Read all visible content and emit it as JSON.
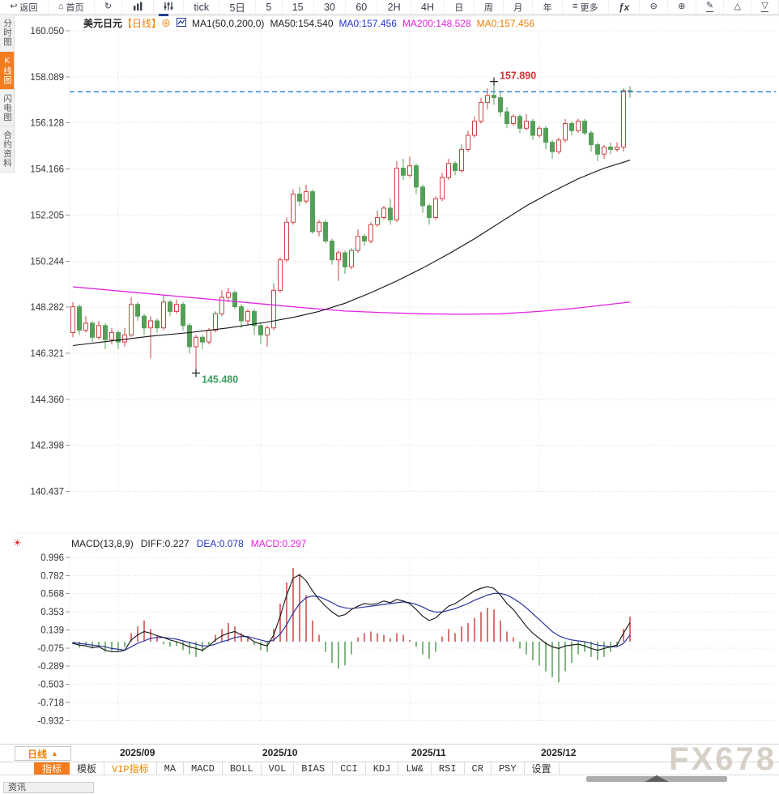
{
  "top_toolbar": {
    "items": [
      {
        "id": "back",
        "icon": "↩",
        "label": "返回"
      },
      {
        "id": "home",
        "icon": "⌂",
        "label": "首页"
      },
      {
        "id": "refresh",
        "icon": "↻",
        "label": ""
      },
      {
        "id": "chart-type",
        "icon": "svg-bars",
        "label": "",
        "active": true
      },
      {
        "id": "indicator-mixer",
        "icon": "svg-sliders",
        "label": ""
      },
      {
        "id": "period-tick",
        "icon": "",
        "label": "tick",
        "cls": "big"
      },
      {
        "id": "period-5d",
        "icon": "",
        "label": "5日",
        "cls": "big"
      },
      {
        "id": "period-5",
        "icon": "",
        "label": "5",
        "cls": "big"
      },
      {
        "id": "period-15",
        "icon": "",
        "label": "15",
        "cls": "big"
      },
      {
        "id": "period-30",
        "icon": "",
        "label": "30",
        "cls": "big"
      },
      {
        "id": "period-60",
        "icon": "",
        "label": "60",
        "cls": "big"
      },
      {
        "id": "period-2h",
        "icon": "",
        "label": "2H",
        "cls": "big"
      },
      {
        "id": "period-4h",
        "icon": "",
        "label": "4H",
        "cls": "big"
      },
      {
        "id": "period-day",
        "icon": "",
        "label": "日"
      },
      {
        "id": "period-week",
        "icon": "",
        "label": "周"
      },
      {
        "id": "period-month",
        "icon": "",
        "label": "月"
      },
      {
        "id": "period-year",
        "icon": "",
        "label": "年"
      },
      {
        "id": "more",
        "icon": "≡",
        "label": "更多"
      },
      {
        "id": "fx-functions",
        "icon": "",
        "label": "ƒx",
        "cls": "fx"
      },
      {
        "id": "zoom-out",
        "icon": "⊖",
        "label": ""
      },
      {
        "id": "zoom-in",
        "icon": "⊕",
        "label": ""
      },
      {
        "id": "draw-pencil",
        "icon": "✎",
        "label": "",
        "cls": "underlined"
      },
      {
        "id": "triangle-up",
        "icon": "△",
        "label": ""
      },
      {
        "id": "collapse-down",
        "icon": "▽",
        "label": "",
        "cls": "underlined"
      }
    ]
  },
  "sidebar": {
    "items": [
      {
        "id": "time-chart",
        "label": "分时图"
      },
      {
        "id": "kline-chart",
        "label": "K线图",
        "active": true
      },
      {
        "id": "lightning-chart",
        "label": "闪电图"
      },
      {
        "id": "contract-info",
        "label": "合约资料"
      }
    ]
  },
  "main_header": {
    "symbol": "美元日元",
    "period_tag": "【日线】",
    "add_icon": "⊕",
    "ma_settings": "MA1(50,0,200,0)",
    "ma50": "MA50:154.540",
    "ma0_blue": "MA0:157.456",
    "ma200": "MA200:148.528",
    "ma0_orange": "MA0:157.456"
  },
  "macd_header": {
    "settings_icon": "☀",
    "title": "MACD(13,8,9)",
    "diff": "DIFF:0.227",
    "dea": "DEA:0.078",
    "macd": "MACD:0.297"
  },
  "period_selector": {
    "label": "日线",
    "arrow": "▲"
  },
  "indicator_bar": {
    "items": [
      {
        "id": "indicators",
        "label": "指标",
        "active": true
      },
      {
        "id": "templates",
        "label": "模板"
      },
      {
        "id": "vip-indicators",
        "label": "VIP指标",
        "vip": true
      },
      {
        "id": "ma",
        "label": "MA"
      },
      {
        "id": "macd",
        "label": "MACD"
      },
      {
        "id": "boll",
        "label": "BOLL"
      },
      {
        "id": "vol",
        "label": "VOL"
      },
      {
        "id": "bias",
        "label": "BIAS"
      },
      {
        "id": "cci",
        "label": "CCI"
      },
      {
        "id": "kdj",
        "label": "KDJ"
      },
      {
        "id": "lw",
        "label": "LW&"
      },
      {
        "id": "rsi",
        "label": "RSI"
      },
      {
        "id": "cr",
        "label": "CR"
      },
      {
        "id": "psy",
        "label": "PSY"
      },
      {
        "id": "settings",
        "label": "设置"
      }
    ]
  },
  "bottom": {
    "partial_tab": "资讯"
  },
  "watermark": "FX678",
  "chart_data": {
    "type": "candlestick+macd",
    "symbol": "USD/JPY 美元日元",
    "period": "日线 (daily)",
    "price_axis": {
      "ticks": [
        "160.050",
        "158.089",
        "156.128",
        "154.166",
        "152.205",
        "150.244",
        "148.282",
        "146.321",
        "144.360",
        "142.398",
        "140.437"
      ]
    },
    "macd_axis": {
      "ticks": [
        "0.996",
        "0.782",
        "0.568",
        "0.353",
        "0.139",
        "-0.075",
        "-0.289",
        "-0.503",
        "-0.718",
        "-0.932"
      ]
    },
    "x_axis": {
      "months": [
        {
          "label": "2025/09",
          "index": 7
        },
        {
          "label": "2025/10",
          "index": 29
        },
        {
          "label": "2025/11",
          "index": 52
        },
        {
          "label": "2025/12",
          "index": 72
        }
      ]
    },
    "current_price": 157.456,
    "high_annotation": {
      "label": "157.890",
      "price": 157.89,
      "index": 65
    },
    "low_annotation": {
      "label": "145.480",
      "price": 145.48,
      "index": 19
    },
    "candles": [
      [
        147.2,
        148.5,
        147.0,
        148.3
      ],
      [
        148.3,
        148.4,
        147.1,
        147.3
      ],
      [
        147.3,
        147.9,
        147.2,
        147.6
      ],
      [
        147.6,
        147.7,
        146.8,
        147.0
      ],
      [
        147.0,
        147.7,
        146.9,
        147.5
      ],
      [
        147.5,
        147.6,
        146.5,
        146.9
      ],
      [
        146.9,
        147.4,
        146.7,
        147.2
      ],
      [
        147.2,
        147.3,
        146.5,
        146.8
      ],
      [
        146.8,
        147.4,
        146.6,
        147.1
      ],
      [
        147.1,
        148.7,
        147.0,
        148.4
      ],
      [
        148.4,
        148.5,
        147.7,
        147.9
      ],
      [
        147.9,
        148.0,
        147.1,
        147.4
      ],
      [
        147.4,
        147.9,
        146.1,
        147.7
      ],
      [
        147.7,
        147.8,
        147.2,
        147.4
      ],
      [
        147.4,
        148.8,
        147.3,
        148.5
      ],
      [
        148.5,
        148.6,
        147.9,
        148.1
      ],
      [
        148.1,
        148.6,
        148.0,
        148.4
      ],
      [
        148.4,
        148.5,
        147.3,
        147.5
      ],
      [
        147.5,
        147.6,
        146.3,
        146.6
      ],
      [
        146.6,
        147.1,
        145.48,
        147.0
      ],
      [
        147.0,
        147.1,
        146.5,
        146.8
      ],
      [
        146.8,
        147.4,
        146.7,
        147.3
      ],
      [
        147.3,
        148.1,
        147.2,
        148.0
      ],
      [
        148.0,
        149.0,
        147.9,
        148.7
      ],
      [
        148.7,
        149.1,
        148.5,
        148.9
      ],
      [
        148.9,
        149.0,
        148.2,
        148.3
      ],
      [
        148.3,
        148.4,
        147.4,
        147.7
      ],
      [
        147.7,
        148.2,
        147.5,
        148.1
      ],
      [
        148.1,
        148.2,
        147.1,
        147.5
      ],
      [
        147.5,
        147.6,
        146.7,
        147.1
      ],
      [
        147.1,
        147.5,
        146.6,
        147.4
      ],
      [
        147.4,
        149.3,
        147.3,
        149.0
      ],
      [
        149.0,
        150.4,
        148.9,
        150.3
      ],
      [
        150.3,
        152.1,
        150.2,
        151.9
      ],
      [
        151.9,
        153.3,
        151.8,
        153.1
      ],
      [
        153.1,
        153.4,
        152.6,
        152.8
      ],
      [
        152.8,
        153.5,
        152.7,
        153.2
      ],
      [
        153.2,
        153.3,
        151.4,
        151.5
      ],
      [
        151.5,
        152.0,
        151.3,
        151.9
      ],
      [
        151.9,
        152.0,
        151.0,
        151.1
      ],
      [
        151.1,
        151.2,
        150.1,
        150.3
      ],
      [
        150.3,
        150.7,
        149.4,
        150.6
      ],
      [
        150.6,
        150.7,
        149.7,
        150.0
      ],
      [
        150.0,
        150.8,
        149.9,
        150.7
      ],
      [
        150.7,
        151.6,
        150.6,
        151.3
      ],
      [
        151.3,
        151.4,
        150.9,
        151.1
      ],
      [
        151.1,
        151.9,
        151.0,
        151.8
      ],
      [
        151.8,
        152.4,
        151.7,
        152.1
      ],
      [
        152.1,
        152.6,
        152.0,
        152.5
      ],
      [
        152.5,
        152.9,
        151.8,
        152.0
      ],
      [
        152.0,
        154.5,
        151.9,
        154.2
      ],
      [
        154.2,
        154.6,
        153.7,
        153.9
      ],
      [
        153.9,
        154.7,
        153.8,
        154.3
      ],
      [
        154.3,
        154.4,
        153.1,
        153.4
      ],
      [
        153.4,
        153.5,
        152.3,
        152.6
      ],
      [
        152.6,
        152.7,
        151.8,
        152.1
      ],
      [
        152.1,
        153.0,
        152.0,
        152.9
      ],
      [
        152.9,
        154.0,
        152.8,
        153.8
      ],
      [
        153.8,
        154.6,
        153.7,
        154.4
      ],
      [
        154.4,
        154.5,
        153.9,
        154.1
      ],
      [
        154.1,
        155.2,
        154.0,
        155.0
      ],
      [
        155.0,
        155.8,
        154.9,
        155.6
      ],
      [
        155.6,
        156.4,
        155.5,
        156.2
      ],
      [
        156.2,
        157.2,
        156.1,
        157.0
      ],
      [
        157.0,
        157.6,
        156.7,
        157.3
      ],
      [
        157.3,
        157.89,
        156.9,
        157.2
      ],
      [
        157.2,
        157.5,
        156.4,
        156.6
      ],
      [
        156.6,
        156.8,
        155.9,
        156.1
      ],
      [
        156.1,
        156.5,
        156.0,
        156.4
      ],
      [
        156.4,
        156.5,
        155.7,
        155.9
      ],
      [
        155.9,
        156.5,
        155.8,
        156.2
      ],
      [
        156.2,
        156.3,
        155.4,
        155.6
      ],
      [
        155.6,
        156.0,
        155.5,
        155.9
      ],
      [
        155.9,
        156.0,
        155.0,
        155.3
      ],
      [
        155.3,
        155.4,
        154.6,
        154.9
      ],
      [
        154.9,
        155.5,
        154.8,
        155.4
      ],
      [
        155.4,
        156.3,
        155.3,
        156.1
      ],
      [
        156.1,
        156.2,
        155.6,
        155.8
      ],
      [
        155.8,
        156.3,
        155.7,
        156.2
      ],
      [
        156.2,
        156.3,
        155.6,
        155.7
      ],
      [
        155.7,
        155.8,
        154.9,
        155.2
      ],
      [
        155.2,
        155.3,
        154.5,
        154.8
      ],
      [
        154.8,
        155.2,
        154.6,
        155.1
      ],
      [
        155.1,
        155.3,
        154.8,
        155.0
      ],
      [
        155.0,
        155.3,
        154.9,
        155.1
      ],
      [
        155.1,
        157.6,
        154.9,
        157.5
      ],
      [
        157.5,
        157.7,
        157.2,
        157.456
      ]
    ],
    "ma50_points": [
      [
        0,
        146.65
      ],
      [
        6,
        146.85
      ],
      [
        12,
        147.05
      ],
      [
        18,
        147.2
      ],
      [
        24,
        147.4
      ],
      [
        30,
        147.65
      ],
      [
        34,
        147.85
      ],
      [
        38,
        148.1
      ],
      [
        42,
        148.45
      ],
      [
        46,
        148.9
      ],
      [
        50,
        149.4
      ],
      [
        54,
        149.95
      ],
      [
        58,
        150.55
      ],
      [
        62,
        151.2
      ],
      [
        66,
        151.9
      ],
      [
        70,
        152.6
      ],
      [
        74,
        153.2
      ],
      [
        78,
        153.75
      ],
      [
        82,
        154.2
      ],
      [
        86,
        154.54
      ]
    ],
    "ma200_points": [
      [
        0,
        149.15
      ],
      [
        8,
        148.95
      ],
      [
        16,
        148.75
      ],
      [
        24,
        148.55
      ],
      [
        30,
        148.4
      ],
      [
        36,
        148.25
      ],
      [
        42,
        148.12
      ],
      [
        48,
        148.05
      ],
      [
        54,
        148.0
      ],
      [
        60,
        147.98
      ],
      [
        66,
        148.0
      ],
      [
        72,
        148.1
      ],
      [
        78,
        148.25
      ],
      [
        86,
        148.5
      ]
    ],
    "macd": {
      "diff": [
        -0.02,
        -0.04,
        -0.05,
        -0.07,
        -0.06,
        -0.1,
        -0.12,
        -0.12,
        -0.1,
        0.02,
        0.08,
        0.12,
        0.1,
        0.07,
        0.05,
        0.02,
        0.0,
        -0.03,
        -0.06,
        -0.08,
        -0.1,
        -0.05,
        0.02,
        0.07,
        0.1,
        0.12,
        0.08,
        0.05,
        0.0,
        -0.03,
        -0.05,
        0.08,
        0.3,
        0.55,
        0.75,
        0.79,
        0.72,
        0.6,
        0.5,
        0.42,
        0.35,
        0.3,
        0.32,
        0.38,
        0.42,
        0.45,
        0.44,
        0.45,
        0.48,
        0.46,
        0.5,
        0.48,
        0.45,
        0.38,
        0.3,
        0.25,
        0.28,
        0.35,
        0.42,
        0.45,
        0.5,
        0.55,
        0.6,
        0.63,
        0.65,
        0.63,
        0.55,
        0.45,
        0.38,
        0.28,
        0.18,
        0.1,
        0.04,
        -0.02,
        -0.06,
        -0.08,
        -0.05,
        -0.04,
        -0.03,
        -0.05,
        -0.08,
        -0.1,
        -0.08,
        -0.06,
        -0.04,
        0.1,
        0.227
      ],
      "dea": [
        -0.01,
        -0.02,
        -0.03,
        -0.04,
        -0.05,
        -0.06,
        -0.08,
        -0.09,
        -0.1,
        -0.06,
        -0.02,
        0.01,
        0.04,
        0.05,
        0.05,
        0.04,
        0.03,
        0.01,
        -0.01,
        -0.03,
        -0.05,
        -0.05,
        -0.03,
        0.0,
        0.02,
        0.05,
        0.06,
        0.06,
        0.04,
        0.02,
        0.0,
        0.02,
        0.09,
        0.2,
        0.34,
        0.45,
        0.52,
        0.54,
        0.53,
        0.5,
        0.46,
        0.42,
        0.4,
        0.39,
        0.4,
        0.41,
        0.42,
        0.43,
        0.44,
        0.45,
        0.46,
        0.47,
        0.46,
        0.44,
        0.41,
        0.37,
        0.35,
        0.35,
        0.37,
        0.39,
        0.42,
        0.45,
        0.49,
        0.52,
        0.55,
        0.57,
        0.57,
        0.55,
        0.51,
        0.46,
        0.4,
        0.33,
        0.26,
        0.19,
        0.12,
        0.07,
        0.04,
        0.02,
        0.01,
        0.0,
        -0.02,
        -0.04,
        -0.05,
        -0.06,
        -0.06,
        -0.02,
        0.078
      ],
      "hist": [
        -0.03,
        -0.07,
        -0.05,
        -0.08,
        -0.06,
        -0.12,
        -0.11,
        -0.11,
        -0.06,
        0.1,
        0.18,
        0.25,
        0.15,
        0.06,
        -0.03,
        -0.06,
        -0.05,
        -0.1,
        -0.15,
        -0.18,
        -0.12,
        -0.05,
        0.08,
        0.15,
        0.22,
        0.18,
        0.1,
        0.04,
        -0.04,
        -0.1,
        -0.12,
        0.15,
        0.45,
        0.7,
        0.87,
        0.8,
        0.55,
        0.25,
        0.08,
        -0.12,
        -0.25,
        -0.32,
        -0.28,
        -0.15,
        0.05,
        0.1,
        0.12,
        0.1,
        0.08,
        0.04,
        0.1,
        0.08,
        0.02,
        -0.06,
        -0.15,
        -0.2,
        -0.12,
        0.06,
        0.15,
        0.1,
        0.18,
        0.22,
        0.28,
        0.35,
        0.4,
        0.38,
        0.25,
        0.12,
        0.05,
        -0.08,
        -0.15,
        -0.22,
        -0.28,
        -0.35,
        -0.42,
        -0.48,
        -0.35,
        -0.25,
        -0.15,
        -0.12,
        -0.18,
        -0.22,
        -0.18,
        -0.12,
        -0.06,
        0.15,
        0.297
      ]
    },
    "colors": {
      "up": "#cc4444",
      "down": "#55a058",
      "ma50": "#111111",
      "ma200": "#e322e3",
      "diff": "#111111",
      "dea": "#2a35a0",
      "current_line": "#1d7fe3",
      "grid": "#eedcdc",
      "high_label": "#cc3333",
      "low_label": "#3aa060"
    }
  }
}
